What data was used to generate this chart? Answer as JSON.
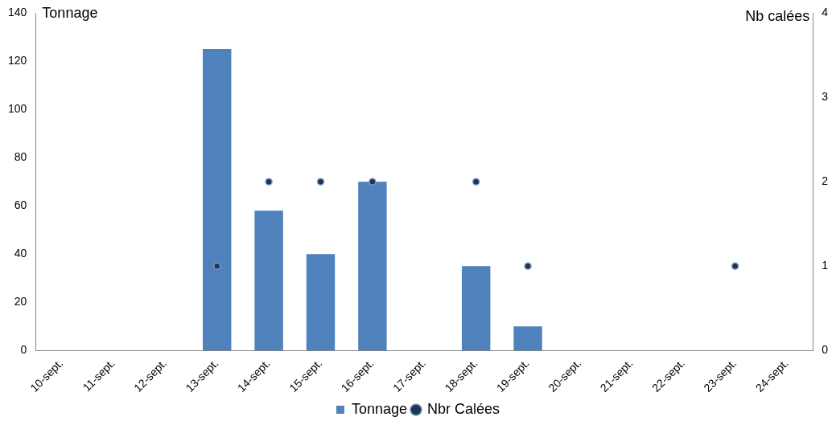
{
  "chart_data": {
    "type": "bar",
    "ylabel": "Tonnage",
    "y2label": "Nb calées",
    "categories": [
      "10-sept.",
      "11-sept.",
      "12-sept.",
      "13-sept.",
      "14-sept.",
      "15-sept.",
      "16-sept.",
      "17-sept.",
      "18-sept.",
      "19-sept.",
      "20-sept.",
      "21-sept.",
      "22-sept.",
      "23-sept.",
      "24-sept."
    ],
    "series": [
      {
        "name": "Tonnage",
        "color": "#4f81bd",
        "values": [
          null,
          null,
          null,
          125,
          58,
          40,
          70,
          null,
          35,
          10,
          null,
          null,
          null,
          null,
          null
        ]
      },
      {
        "name": "Nbr Calées",
        "type": "scatter",
        "axis": "y2",
        "color": "#1f3550",
        "values": [
          null,
          null,
          null,
          1,
          2,
          2,
          2,
          null,
          2,
          1,
          null,
          null,
          null,
          1,
          null
        ]
      }
    ],
    "ylim": [
      0,
      140
    ],
    "yticks": [
      0,
      20,
      40,
      60,
      80,
      100,
      120,
      140
    ],
    "y2lim": [
      0,
      4
    ],
    "y2ticks": [
      0,
      1,
      2,
      3,
      4
    ],
    "grid": false,
    "legend": "bottom",
    "marker": "circle"
  }
}
